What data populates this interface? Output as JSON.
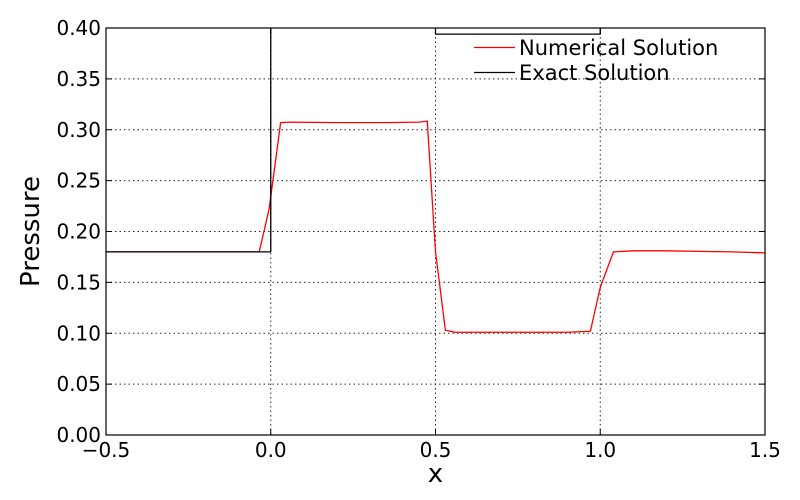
{
  "chart_data": {
    "type": "line",
    "title": "",
    "xlabel": "x",
    "ylabel": "Pressure",
    "xlim": [
      -0.5,
      1.5
    ],
    "ylim": [
      0.0,
      0.4
    ],
    "x_ticks": [
      -0.5,
      0.0,
      0.5,
      1.0,
      1.5
    ],
    "x_tick_labels": [
      "−0.5",
      "0.0",
      "0.5",
      "1.0",
      "1.5"
    ],
    "y_ticks": [
      0.0,
      0.05,
      0.1,
      0.15,
      0.2,
      0.25,
      0.3,
      0.35,
      0.4
    ],
    "y_tick_labels": [
      "0.00",
      "0.05",
      "0.10",
      "0.15",
      "0.20",
      "0.25",
      "0.30",
      "0.35",
      "0.40"
    ],
    "grid": true,
    "legend_position": "top-right",
    "series": [
      {
        "name": "Numerical Solution",
        "color": "#ff0000",
        "x": [
          -0.5,
          -0.035,
          -0.005,
          0.03,
          0.06,
          0.2,
          0.35,
          0.45,
          0.475,
          0.5,
          0.53,
          0.56,
          0.7,
          0.9,
          0.97,
          1.0,
          1.04,
          1.1,
          1.2,
          1.3,
          1.4,
          1.5
        ],
        "y": [
          0.18,
          0.18,
          0.222,
          0.307,
          0.3075,
          0.307,
          0.307,
          0.3075,
          0.3085,
          0.18,
          0.103,
          0.101,
          0.101,
          0.101,
          0.102,
          0.145,
          0.18,
          0.181,
          0.181,
          0.1805,
          0.18,
          0.179
        ]
      },
      {
        "name": "Exact Solution",
        "color": "#000000",
        "x": [
          -0.5,
          0.0,
          0.0,
          0.5,
          0.5,
          1.0,
          1.0
        ],
        "y": [
          0.18,
          0.18,
          0.446,
          0.446,
          0.394,
          0.394,
          0.45
        ]
      }
    ]
  }
}
